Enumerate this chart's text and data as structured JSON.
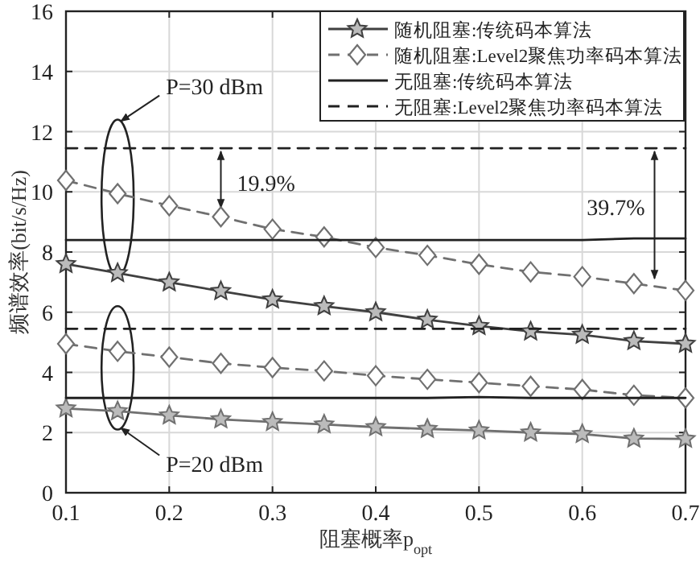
{
  "chart_data": {
    "type": "line",
    "xlabel": "阻塞概率p$_{opt}$",
    "ylabel": "频谱效率(bit/s/Hz)",
    "x": [
      0.1,
      0.15,
      0.2,
      0.25,
      0.3,
      0.35,
      0.4,
      0.45,
      0.5,
      0.55,
      0.6,
      0.65,
      0.7
    ],
    "xlim": [
      0.1,
      0.7
    ],
    "xticks": [
      0.1,
      0.2,
      0.3,
      0.4,
      0.5,
      0.6,
      0.7
    ],
    "ylim": [
      0,
      16
    ],
    "yticks": [
      0,
      2,
      4,
      6,
      8,
      10,
      12,
      14,
      16
    ],
    "grid": true,
    "legend": "top right",
    "series": [
      {
        "name": "随机阻塞:传统码本算法",
        "color": "#404040",
        "marker": "star",
        "line_style": "solid",
        "values": [
          7.6,
          7.3,
          6.99,
          6.7,
          6.42,
          6.2,
          6.0,
          5.75,
          5.54,
          5.36,
          5.25,
          5.04,
          4.95
        ]
      },
      {
        "name": "随机阻塞:Level2聚焦功率码本算法",
        "color": "#707070",
        "marker": "diamond",
        "line_style": "dashed",
        "values": [
          10.38,
          9.94,
          9.54,
          9.17,
          8.76,
          8.5,
          8.15,
          7.89,
          7.59,
          7.34,
          7.18,
          6.95,
          6.72
        ]
      },
      {
        "name": "无阻塞:传统码本算法",
        "color": "#202020",
        "marker": "none",
        "line_style": "solid",
        "values": [
          8.4,
          8.4,
          8.4,
          8.4,
          8.4,
          8.4,
          8.4,
          8.4,
          8.4,
          8.4,
          8.4,
          8.45,
          8.45
        ]
      },
      {
        "name": "无阻塞:Level2聚焦功率码本算法",
        "color": "#202020",
        "marker": "none",
        "line_style": "dashed",
        "values": [
          11.45,
          11.45,
          11.45,
          11.45,
          11.45,
          11.45,
          11.45,
          11.45,
          11.45,
          11.45,
          11.45,
          11.45,
          11.45
        ]
      },
      {
        "color": "#707070",
        "marker": "star",
        "line_style": "solid",
        "values": [
          2.8,
          2.71,
          2.57,
          2.44,
          2.35,
          2.27,
          2.18,
          2.12,
          2.07,
          2.0,
          1.95,
          1.8,
          1.79
        ]
      },
      {
        "color": "#707070",
        "marker": "diamond",
        "line_style": "dashed",
        "values": [
          4.95,
          4.7,
          4.51,
          4.3,
          4.16,
          4.05,
          3.89,
          3.77,
          3.66,
          3.54,
          3.43,
          3.24,
          3.15
        ]
      },
      {
        "color": "#202020",
        "marker": "none",
        "line_style": "solid",
        "values": [
          3.15,
          3.15,
          3.15,
          3.15,
          3.15,
          3.15,
          3.15,
          3.15,
          3.18,
          3.15,
          3.15,
          3.15,
          3.15
        ]
      },
      {
        "color": "#202020",
        "marker": "none",
        "line_style": "dashed",
        "values": [
          5.45,
          5.45,
          5.45,
          5.45,
          5.45,
          5.45,
          5.45,
          5.45,
          5.45,
          5.45,
          5.45,
          5.45,
          5.45
        ]
      }
    ],
    "annotations": [
      "P=30 dBm",
      "P=20 dBm",
      "19.9%",
      "39.7%"
    ]
  }
}
